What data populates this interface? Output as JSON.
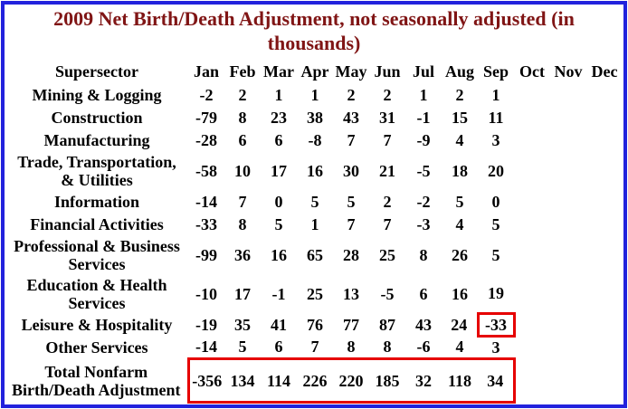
{
  "title": "2009 Net Birth/Death Adjustment, not seasonally adjusted (in thousands)",
  "colors": {
    "frame_border": "#2222dd",
    "title_text": "#801515",
    "table_text": "#000000",
    "highlight_box": "#e60000",
    "background": "#ffffff"
  },
  "table": {
    "header": [
      "Supersector",
      "Jan",
      "Feb",
      "Mar",
      "Apr",
      "May",
      "Jun",
      "Jul",
      "Aug",
      "Sep",
      "Oct",
      "Nov",
      "Dec"
    ],
    "row_labels_display": [
      "Mining & Logging",
      "Construction",
      "Manufacturing",
      "Trade, Transportation,\n& Utilities",
      "Information",
      "Financial Activities",
      "Professional & Business\nServices",
      "Education & Health\nServices",
      "Leisure & Hospitality",
      "Other Services",
      "Total Nonfarm\nBirth/Death Adjustment"
    ]
  },
  "highlights": [
    {
      "type": "cell",
      "row": 8,
      "col": 8,
      "note": "red box around Sep value (-33) of Leisure & Hospitality"
    },
    {
      "type": "row-span",
      "row": 10,
      "col_from": 0,
      "col_to": 8,
      "note": "red box around Jan-Sep values of Total Nonfarm Birth/Death Adjustment"
    }
  ],
  "chart_data": {
    "type": "table",
    "title": "2009 Net Birth/Death Adjustment, not seasonally adjusted (in thousands)",
    "units": "thousands",
    "columns": [
      "Jan",
      "Feb",
      "Mar",
      "Apr",
      "May",
      "Jun",
      "Jul",
      "Aug",
      "Sep",
      "Oct",
      "Nov",
      "Dec"
    ],
    "rows": [
      {
        "label": "Mining & Logging",
        "values": [
          -2,
          2,
          1,
          1,
          2,
          2,
          1,
          2,
          1,
          null,
          null,
          null
        ]
      },
      {
        "label": "Construction",
        "values": [
          -79,
          8,
          23,
          38,
          43,
          31,
          -1,
          15,
          11,
          null,
          null,
          null
        ]
      },
      {
        "label": "Manufacturing",
        "values": [
          -28,
          6,
          6,
          -8,
          7,
          7,
          -9,
          4,
          3,
          null,
          null,
          null
        ]
      },
      {
        "label": "Trade, Transportation, & Utilities",
        "values": [
          -58,
          10,
          17,
          16,
          30,
          21,
          -5,
          18,
          20,
          null,
          null,
          null
        ]
      },
      {
        "label": "Information",
        "values": [
          -14,
          7,
          0,
          5,
          5,
          2,
          -2,
          5,
          0,
          null,
          null,
          null
        ]
      },
      {
        "label": "Financial Activities",
        "values": [
          -33,
          8,
          5,
          1,
          7,
          7,
          -3,
          4,
          5,
          null,
          null,
          null
        ]
      },
      {
        "label": "Professional & Business Services",
        "values": [
          -99,
          36,
          16,
          65,
          28,
          25,
          8,
          26,
          5,
          null,
          null,
          null
        ]
      },
      {
        "label": "Education & Health Services",
        "values": [
          -10,
          17,
          -1,
          25,
          13,
          -5,
          6,
          16,
          19,
          null,
          null,
          null
        ]
      },
      {
        "label": "Leisure & Hospitality",
        "values": [
          -19,
          35,
          41,
          76,
          77,
          87,
          43,
          24,
          -33,
          null,
          null,
          null
        ]
      },
      {
        "label": "Other Services",
        "values": [
          -14,
          5,
          6,
          7,
          8,
          8,
          -6,
          4,
          3,
          null,
          null,
          null
        ]
      },
      {
        "label": "Total Nonfarm Birth/Death Adjustment",
        "values": [
          -356,
          134,
          114,
          226,
          220,
          185,
          32,
          118,
          34,
          null,
          null,
          null
        ]
      }
    ],
    "notes": "Oct, Nov and Dec columns are empty"
  }
}
